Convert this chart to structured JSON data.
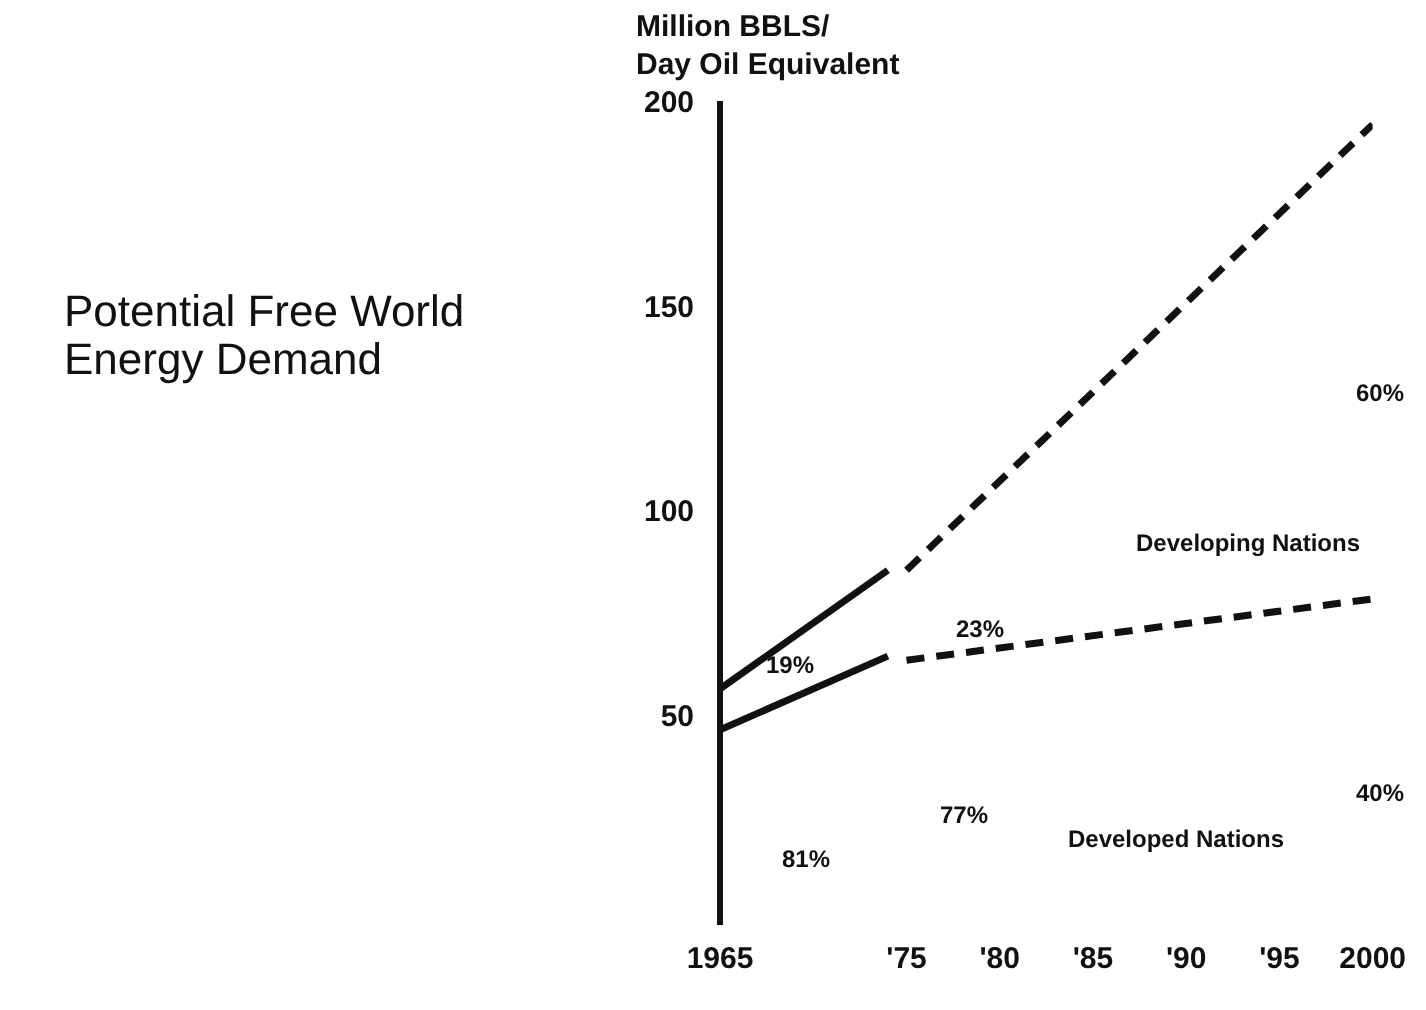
{
  "chart_data": {
    "type": "line",
    "title": "Potential Free World Energy Demand",
    "ylabel": "Million BBLS/\nDay Oil Equivalent",
    "series": [
      {
        "color": "#111111",
        "line_style": "solid",
        "x": [
          1965,
          1974
        ],
        "values": [
          57,
          86
        ]
      },
      {
        "color": "#111111",
        "line_style": "dashed",
        "x": [
          1975,
          2000
        ],
        "values": [
          86,
          195
        ]
      },
      {
        "color": "#111111",
        "line_style": "solid",
        "x": [
          1965,
          1974
        ],
        "values": [
          47,
          65
        ]
      },
      {
        "color": "#111111",
        "line_style": "dashed",
        "x": [
          1975,
          2000
        ],
        "values": [
          64,
          79
        ]
      }
    ],
    "xlim": [
      1965,
      2000
    ],
    "xticks": [
      1965,
      {
        "value": 1975,
        "label": "'75"
      },
      {
        "value": 1980,
        "label": "'80"
      },
      {
        "value": 1985,
        "label": "'85"
      },
      {
        "value": 1990,
        "label": "'90"
      },
      {
        "value": 1995,
        "label": "'95"
      },
      2000
    ],
    "ylim": [
      0,
      200
    ],
    "yticks": [
      50,
      100,
      150,
      200
    ],
    "grid": false,
    "legend": false,
    "marker": "none",
    "annotations": [
      "19%",
      "81%",
      "23%",
      "77%",
      "60%",
      "40%",
      "Developing Nations",
      "Developed Nations"
    ]
  }
}
